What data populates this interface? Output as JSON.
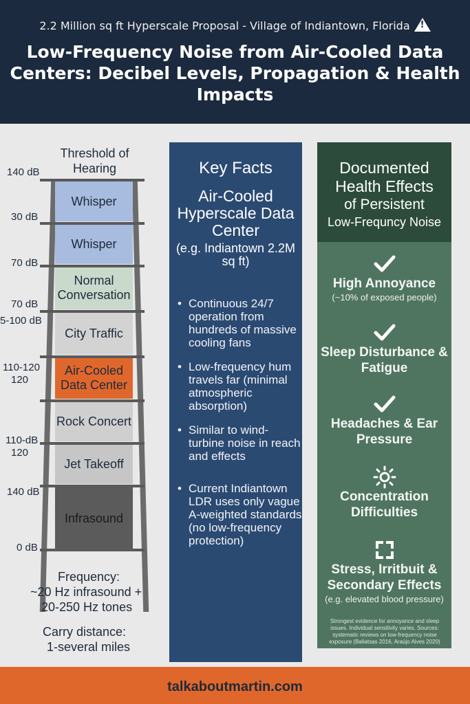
{
  "header": {
    "subtitle": "2.2 Million sq ft Hyperscale Proposal - Village of Indiantown, Florida",
    "title": "Low-Frequency Noise from Air-Cooled Data Centers: Decibel Levels, Propagation & Health Impacts",
    "warning_icon": "warning-triangle-icon"
  },
  "scale": {
    "threshold_label": "Threshold of Hearing",
    "y_labels": [
      "140 dB",
      "30 dB",
      "70 dB",
      "70 dB",
      "5-100 dB",
      "110-120",
      "120",
      "110-dB",
      "120",
      "140 dB",
      "0 dB"
    ],
    "levels": [
      {
        "label": "Whisper",
        "color": "#a8bce0"
      },
      {
        "label": "Whisper",
        "color": "#a8bce0"
      },
      {
        "label": "Normal Conversation",
        "color": "#c9d9cc"
      },
      {
        "label": "City Traffic",
        "color": "#d3d3d3"
      },
      {
        "label": "Air-Cooled Data Center",
        "color": "#e0672c"
      },
      {
        "label": "Rock Concert",
        "color": "#cfcfcf"
      },
      {
        "label": "Jet Takeoff",
        "color": "#c6c6c6"
      },
      {
        "label": "Infrasound",
        "color": "#5b5b5b"
      }
    ],
    "frequency_label": "Frequency:",
    "frequency_value_1": "~20 Hz infrasound +",
    "frequency_value_2": "20-250 Hz tones",
    "carry_label": "Carry distance:",
    "carry_value": "1-several miles"
  },
  "facts": {
    "heading": "Key Facts",
    "subheading": "Air-Cooled Hyperscale Data Center",
    "example": "(e.g. Indiantown 2.2M sq ft)",
    "bullets": [
      "Continuous 24/7 operation from hundreds of massive cooling fans",
      "Low-frequency hum travels far (minimal atmospheric absorption)",
      "Similar to wind-turbine noise in reach and effects",
      "Current Indiantown LDR uses only vague A-weighted standards (no low-frequency protection)"
    ]
  },
  "health": {
    "heading_1": "Documented Health Effects",
    "heading_2": "of Persistent",
    "heading_3": "Low-Frequncy Noise",
    "effects": [
      {
        "label": "High Annoyance",
        "note": "(~10% of exposed people)",
        "icon": "checkmark-icon"
      },
      {
        "label": "Sleep Disturbance & Fatigue",
        "note": "",
        "icon": "checkmark-icon"
      },
      {
        "label": "Headaches & Ear Pressure",
        "note": "",
        "icon": "checkmark-icon"
      },
      {
        "label": "Concentration Difficulties",
        "note": "",
        "icon": "sun-icon"
      },
      {
        "label": "Stress, Irritbuit & Secondary Effects",
        "note": "(e.g. elevated blood pressure)",
        "icon": "focus-bracket-icon"
      }
    ],
    "fineprint": "Strongest evidence for annoyance and sleep issues. Individual sensitivity varies. Sources: systematic reviews on low-frequency noise exposure (Baliatsas 2016, Araújo Alves 2020)"
  },
  "footer": {
    "site": "talkaboutmartin.com"
  }
}
